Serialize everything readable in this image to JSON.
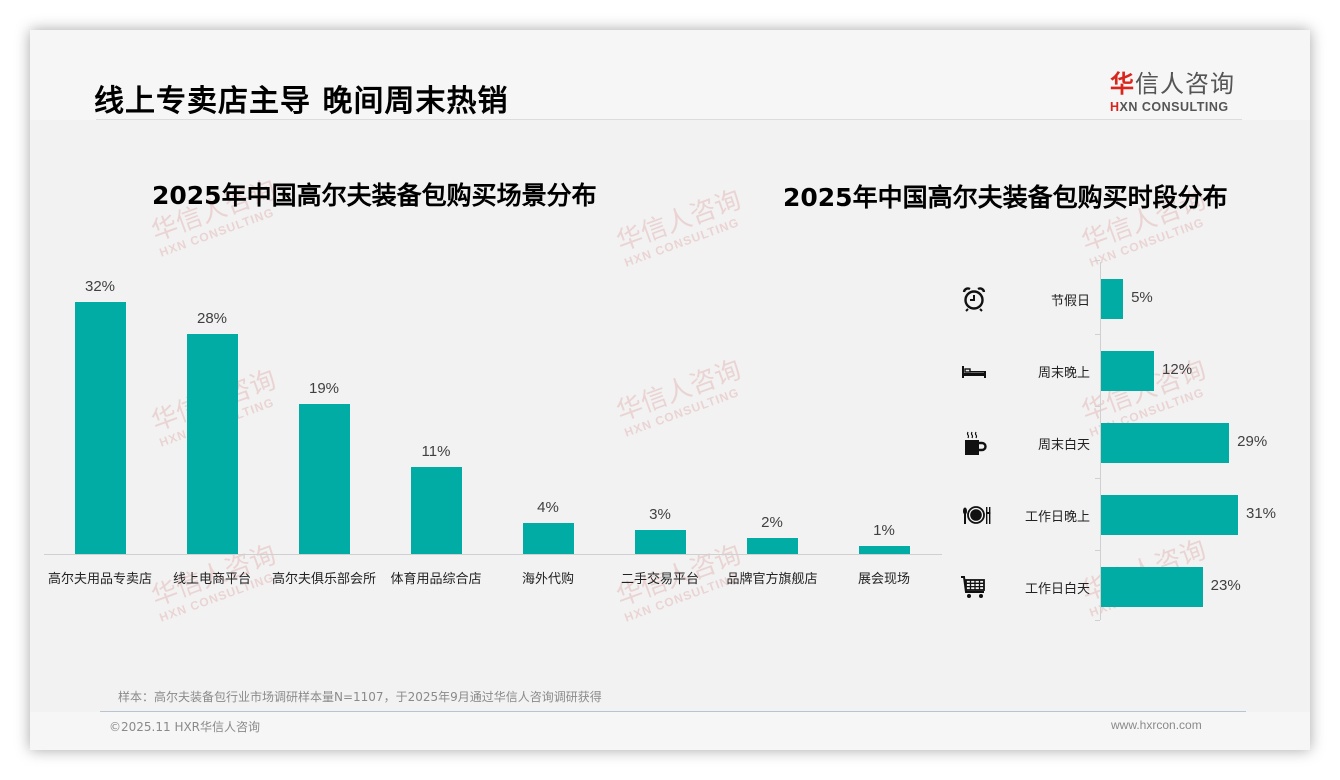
{
  "header": {
    "title": "线上专卖店主导 晚间周末热销",
    "logo_cn_first": "华",
    "logo_cn_rest": "信人咨询",
    "logo_en_first": "H",
    "logo_en_rest": "XN CONSULTING"
  },
  "watermark": {
    "cn": "华信人咨询",
    "en": "HXN CONSULTING"
  },
  "colors": {
    "bar": "#00aca3",
    "brand_red": "#d9261c"
  },
  "chart_data": [
    {
      "type": "bar",
      "title": "2025年中国高尔夫装备包购买场景分布",
      "xlabel": "",
      "ylabel": "",
      "categories": [
        "高尔夫用品专卖店",
        "线上电商平台",
        "高尔夫俱乐部会所",
        "体育用品综合店",
        "海外代购",
        "二手交易平台",
        "品牌官方旗舰店",
        "展会现场"
      ],
      "values": [
        32,
        28,
        19,
        11,
        4,
        3,
        2,
        1
      ],
      "labels": [
        "32%",
        "28%",
        "19%",
        "11%",
        "4%",
        "3%",
        "2%",
        "1%"
      ],
      "unit": "%",
      "grid": false,
      "legend": "none"
    },
    {
      "type": "bar",
      "orientation": "horizontal",
      "title": "2025年中国高尔夫装备包购买时段分布",
      "xlabel": "",
      "ylabel": "",
      "categories": [
        "节假日",
        "周末晚上",
        "周末白天",
        "工作日晚上",
        "工作日白天"
      ],
      "values": [
        5,
        12,
        29,
        31,
        23
      ],
      "labels": [
        "5%",
        "12%",
        "29%",
        "31%",
        "23%"
      ],
      "icons": [
        "alarm-clock-icon",
        "bed-icon",
        "coffee-cup-icon",
        "dining-plate-icon",
        "shopping-cart-icon"
      ],
      "unit": "%",
      "grid": false,
      "legend": "none"
    }
  ],
  "footer": {
    "source": "样本：高尔夫装备包行业市场调研样本量N=1107，于2025年9月通过华信人咨询调研获得",
    "copyright": "©2025.11 HXR华信人咨询",
    "website": "www.hxrcon.com"
  }
}
